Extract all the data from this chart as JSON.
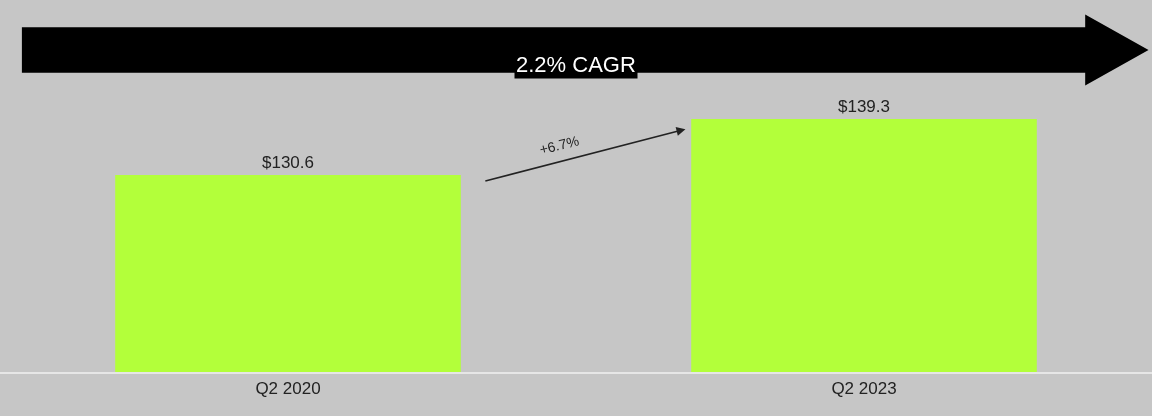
{
  "chart_data": {
    "type": "bar",
    "categories": [
      "Q2 2020",
      "Q2 2023"
    ],
    "values": [
      130.6,
      139.3
    ],
    "value_labels": [
      "$130.6",
      "$139.3"
    ],
    "color": "#b3ff3a",
    "ylim": [
      100,
      150
    ],
    "tick_labels": "x",
    "grid": false,
    "legend": false,
    "annotations": [
      "2.2% CAGR",
      "+6.7%"
    ]
  }
}
